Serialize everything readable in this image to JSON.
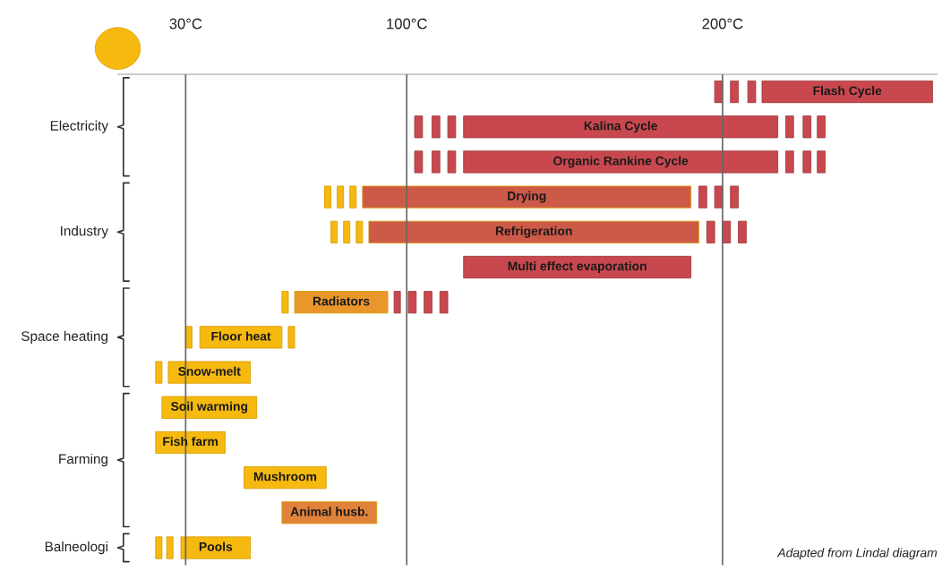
{
  "chart_data": {
    "type": "bar",
    "orientation": "horizontal",
    "categories": [
      "Flash Cycle",
      "Kalina Cycle",
      "Organic Rankine Cycle",
      "Drying",
      "Refrigeration",
      "Multi effect evaporation",
      "Radiators",
      "Floor heat",
      "Snow-melt",
      "Soil warming",
      "Fish farm",
      "Mushroom",
      "Animal husb.",
      "Pools"
    ],
    "series": [
      {
        "base": [
          197.5,
          102.5,
          102.5,
          74,
          76,
          118,
          60.5,
          30,
          20.5,
          22.5,
          20.5,
          48.5,
          60.5,
          20.5
        ],
        "values": [
          2.5,
          2.5,
          2.5,
          2,
          2,
          72,
          2,
          2,
          2,
          30,
          22,
          26,
          30,
          2
        ],
        "colors": [
          "#c9484f",
          "#c9484f",
          "#c9484f",
          "#f6b90f",
          "#f6b90f",
          "#c9484f",
          "#f6b90f",
          "#f6b90f",
          "#f6b90f",
          "#f6b90f",
          "#f6b90f",
          "#f6b90f",
          "#e0823a",
          "#f6b90f"
        ]
      },
      {
        "base": [
          202.5,
          108,
          108,
          78,
          80,
          null,
          64.5,
          34.5,
          24.5,
          null,
          null,
          null,
          null,
          24
        ],
        "values": [
          2.5,
          2.5,
          2.5,
          2,
          2,
          null,
          29.5,
          26,
          26,
          null,
          null,
          null,
          null,
          2
        ],
        "colors": [
          "#c9484f",
          "#c9484f",
          "#c9484f",
          "#f6b90f",
          "#f6b90f",
          null,
          "#e9962a",
          "#f6b90f",
          "#f6b90f",
          null,
          null,
          null,
          null,
          "#f6b90f"
        ]
      },
      {
        "base": [
          208,
          113,
          113,
          82,
          84,
          null,
          96,
          62.5,
          null,
          null,
          null,
          null,
          null,
          28.5
        ],
        "values": [
          2.5,
          2.5,
          2.5,
          2,
          2,
          null,
          2,
          2,
          null,
          null,
          null,
          null,
          null,
          22
        ],
        "colors": [
          "#c9484f",
          "#c9484f",
          "#c9484f",
          "#f6b90f",
          "#f6b90f",
          null,
          "#c9484f",
          "#f6b90f",
          null,
          null,
          null,
          null,
          null,
          "#f6b90f"
        ]
      },
      {
        "base": [
          212.5,
          118,
          118,
          86,
          88,
          null,
          100.5,
          null,
          null,
          null,
          null,
          null,
          null,
          null
        ],
        "values": [
          54,
          99.5,
          99.5,
          104,
          104.5,
          null,
          2.5,
          null,
          null,
          null,
          null,
          null,
          null,
          null
        ],
        "colors": [
          "#c9484f",
          "#c9484f",
          "#c9484f",
          "#cd5a48",
          "#cd5a48",
          null,
          "#c9484f",
          null,
          null,
          null,
          null,
          null,
          null,
          null
        ]
      },
      {
        "base": [
          null,
          220,
          220,
          192.5,
          195,
          null,
          105.5,
          null,
          null,
          null,
          null,
          null,
          null,
          null
        ],
        "values": [
          null,
          2.5,
          2.5,
          2.5,
          2.5,
          null,
          2.5,
          null,
          null,
          null,
          null,
          null,
          null,
          null
        ],
        "colors": [
          null,
          "#c9484f",
          "#c9484f",
          "#c9484f",
          "#c9484f",
          null,
          "#c9484f",
          null,
          null,
          null,
          null,
          null,
          null,
          null
        ]
      },
      {
        "base": [
          null,
          225.5,
          225.5,
          197.5,
          200,
          null,
          110.5,
          null,
          null,
          null,
          null,
          null,
          null,
          null
        ],
        "values": [
          null,
          2.5,
          2.5,
          2.5,
          2.5,
          null,
          2.5,
          null,
          null,
          null,
          null,
          null,
          null,
          null
        ],
        "colors": [
          null,
          "#c9484f",
          "#c9484f",
          "#c9484f",
          "#c9484f",
          null,
          "#c9484f",
          null,
          null,
          null,
          null,
          null,
          null,
          null
        ]
      },
      {
        "base": [
          null,
          230,
          230,
          202.5,
          205,
          null,
          null,
          null,
          null,
          null,
          null,
          null,
          null,
          null
        ],
        "values": [
          null,
          2.5,
          2.5,
          2.5,
          2.5,
          null,
          null,
          null,
          null,
          null,
          null,
          null,
          null,
          null
        ],
        "colors": [
          null,
          "#c9484f",
          "#c9484f",
          "#c9484f",
          "#c9484f",
          null,
          null,
          null,
          null,
          null,
          null,
          null,
          null,
          null
        ]
      }
    ],
    "xlim": [
      8.5,
      268
    ],
    "xticks": [
      {
        "value": 30,
        "label": "30°C"
      },
      {
        "value": 100,
        "label": "100°C"
      },
      {
        "value": 200,
        "label": "200°C"
      }
    ],
    "grid": "x",
    "tick_labels": "x",
    "annotations": [
      "Electricity",
      "Industry",
      "Space heating",
      "Farming",
      "Balneologi",
      "Adapted from Lindal diagram"
    ]
  }
}
